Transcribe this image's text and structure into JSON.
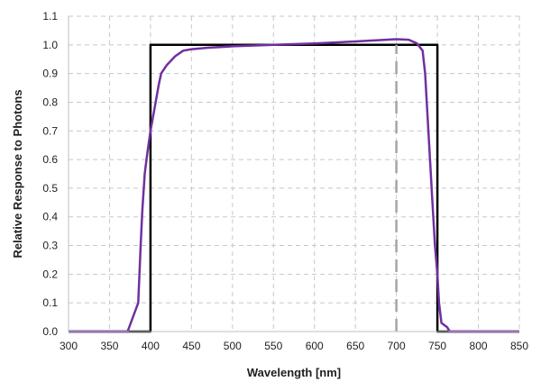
{
  "chart_data": {
    "type": "line",
    "title": "",
    "xlabel": "Wavelength [nm]",
    "ylabel": "Relative Response to Photons",
    "xlim": [
      300,
      850
    ],
    "ylim": [
      0,
      1.1
    ],
    "x_ticks": [
      300,
      350,
      400,
      450,
      500,
      550,
      600,
      650,
      700,
      750,
      800,
      850
    ],
    "y_ticks": [
      0.0,
      0.1,
      0.2,
      0.3,
      0.4,
      0.5,
      0.6,
      0.7,
      0.8,
      0.9,
      1.0,
      1.1
    ],
    "grid": true,
    "legend": "none",
    "series": [
      {
        "style": "solid",
        "color": "#000000",
        "x": [
          300,
          400,
          400,
          750,
          750,
          850
        ],
        "y": [
          0,
          0,
          1.0,
          1.0,
          0,
          0
        ]
      },
      {
        "style": "solid",
        "color": "#7030a0",
        "x": [
          300,
          372,
          385,
          388,
          390,
          393,
          396,
          400,
          405,
          410,
          413,
          420,
          430,
          440,
          450,
          470,
          500,
          550,
          600,
          650,
          700,
          715,
          725,
          732,
          735,
          738,
          741,
          744,
          747,
          750,
          752,
          755,
          762,
          765,
          770,
          800,
          850
        ],
        "y": [
          0,
          0,
          0.1,
          0.3,
          0.42,
          0.55,
          0.62,
          0.7,
          0.78,
          0.86,
          0.9,
          0.93,
          0.96,
          0.98,
          0.985,
          0.99,
          0.995,
          1.0,
          1.005,
          1.012,
          1.02,
          1.018,
          1.005,
          0.98,
          0.9,
          0.75,
          0.6,
          0.45,
          0.3,
          0.2,
          0.1,
          0.03,
          0.015,
          0.0,
          0,
          0,
          0
        ]
      },
      {
        "style": "dashed",
        "color": "#a6a6a6",
        "x": [
          700,
          700
        ],
        "y": [
          0,
          1.0
        ]
      }
    ]
  }
}
